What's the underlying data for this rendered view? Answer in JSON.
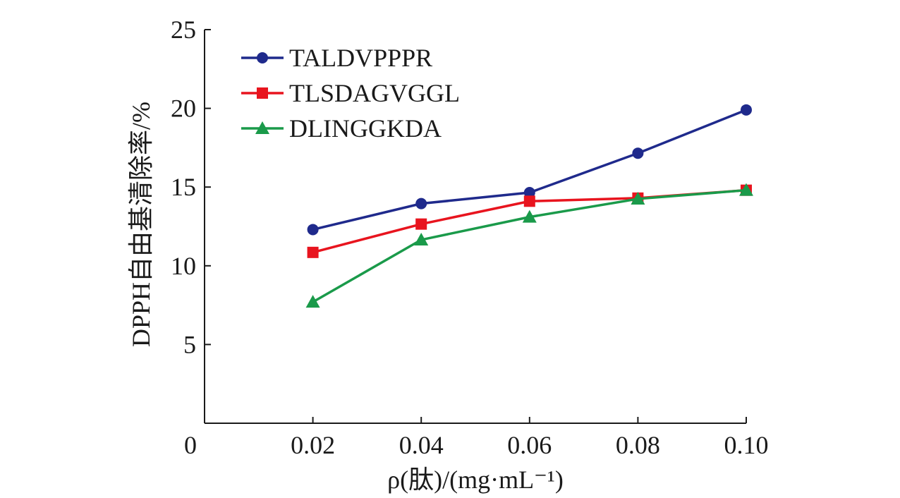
{
  "chart_data": {
    "type": "line",
    "x": [
      0.02,
      0.04,
      0.06,
      0.08,
      0.1
    ],
    "x_tick_labels": [
      "0",
      "0.02",
      "0.04",
      "0.06",
      "0.08",
      "0.10"
    ],
    "y_tick_labels": [
      "5",
      "10",
      "15",
      "20",
      "25"
    ],
    "xlabel": "ρ(肽)/(mg·mL⁻¹)",
    "ylabel": "DPPH自由基清除率/%",
    "xlim": [
      0,
      0.1
    ],
    "ylim": [
      0,
      25
    ],
    "grid": false,
    "legend_position": "top-left",
    "series": [
      {
        "name": "TALDVPPPR",
        "color": "#1f2a8c",
        "marker": "circle",
        "values": [
          12.3,
          13.95,
          14.65,
          17.15,
          19.9
        ]
      },
      {
        "name": "TLSDAGVGGL",
        "color": "#e8141e",
        "marker": "square",
        "values": [
          10.85,
          12.65,
          14.1,
          14.3,
          14.8
        ]
      },
      {
        "name": "DLINGGKDA",
        "color": "#1a9a4a",
        "marker": "triangle",
        "values": [
          7.7,
          11.65,
          13.1,
          14.25,
          14.8
        ]
      }
    ]
  }
}
